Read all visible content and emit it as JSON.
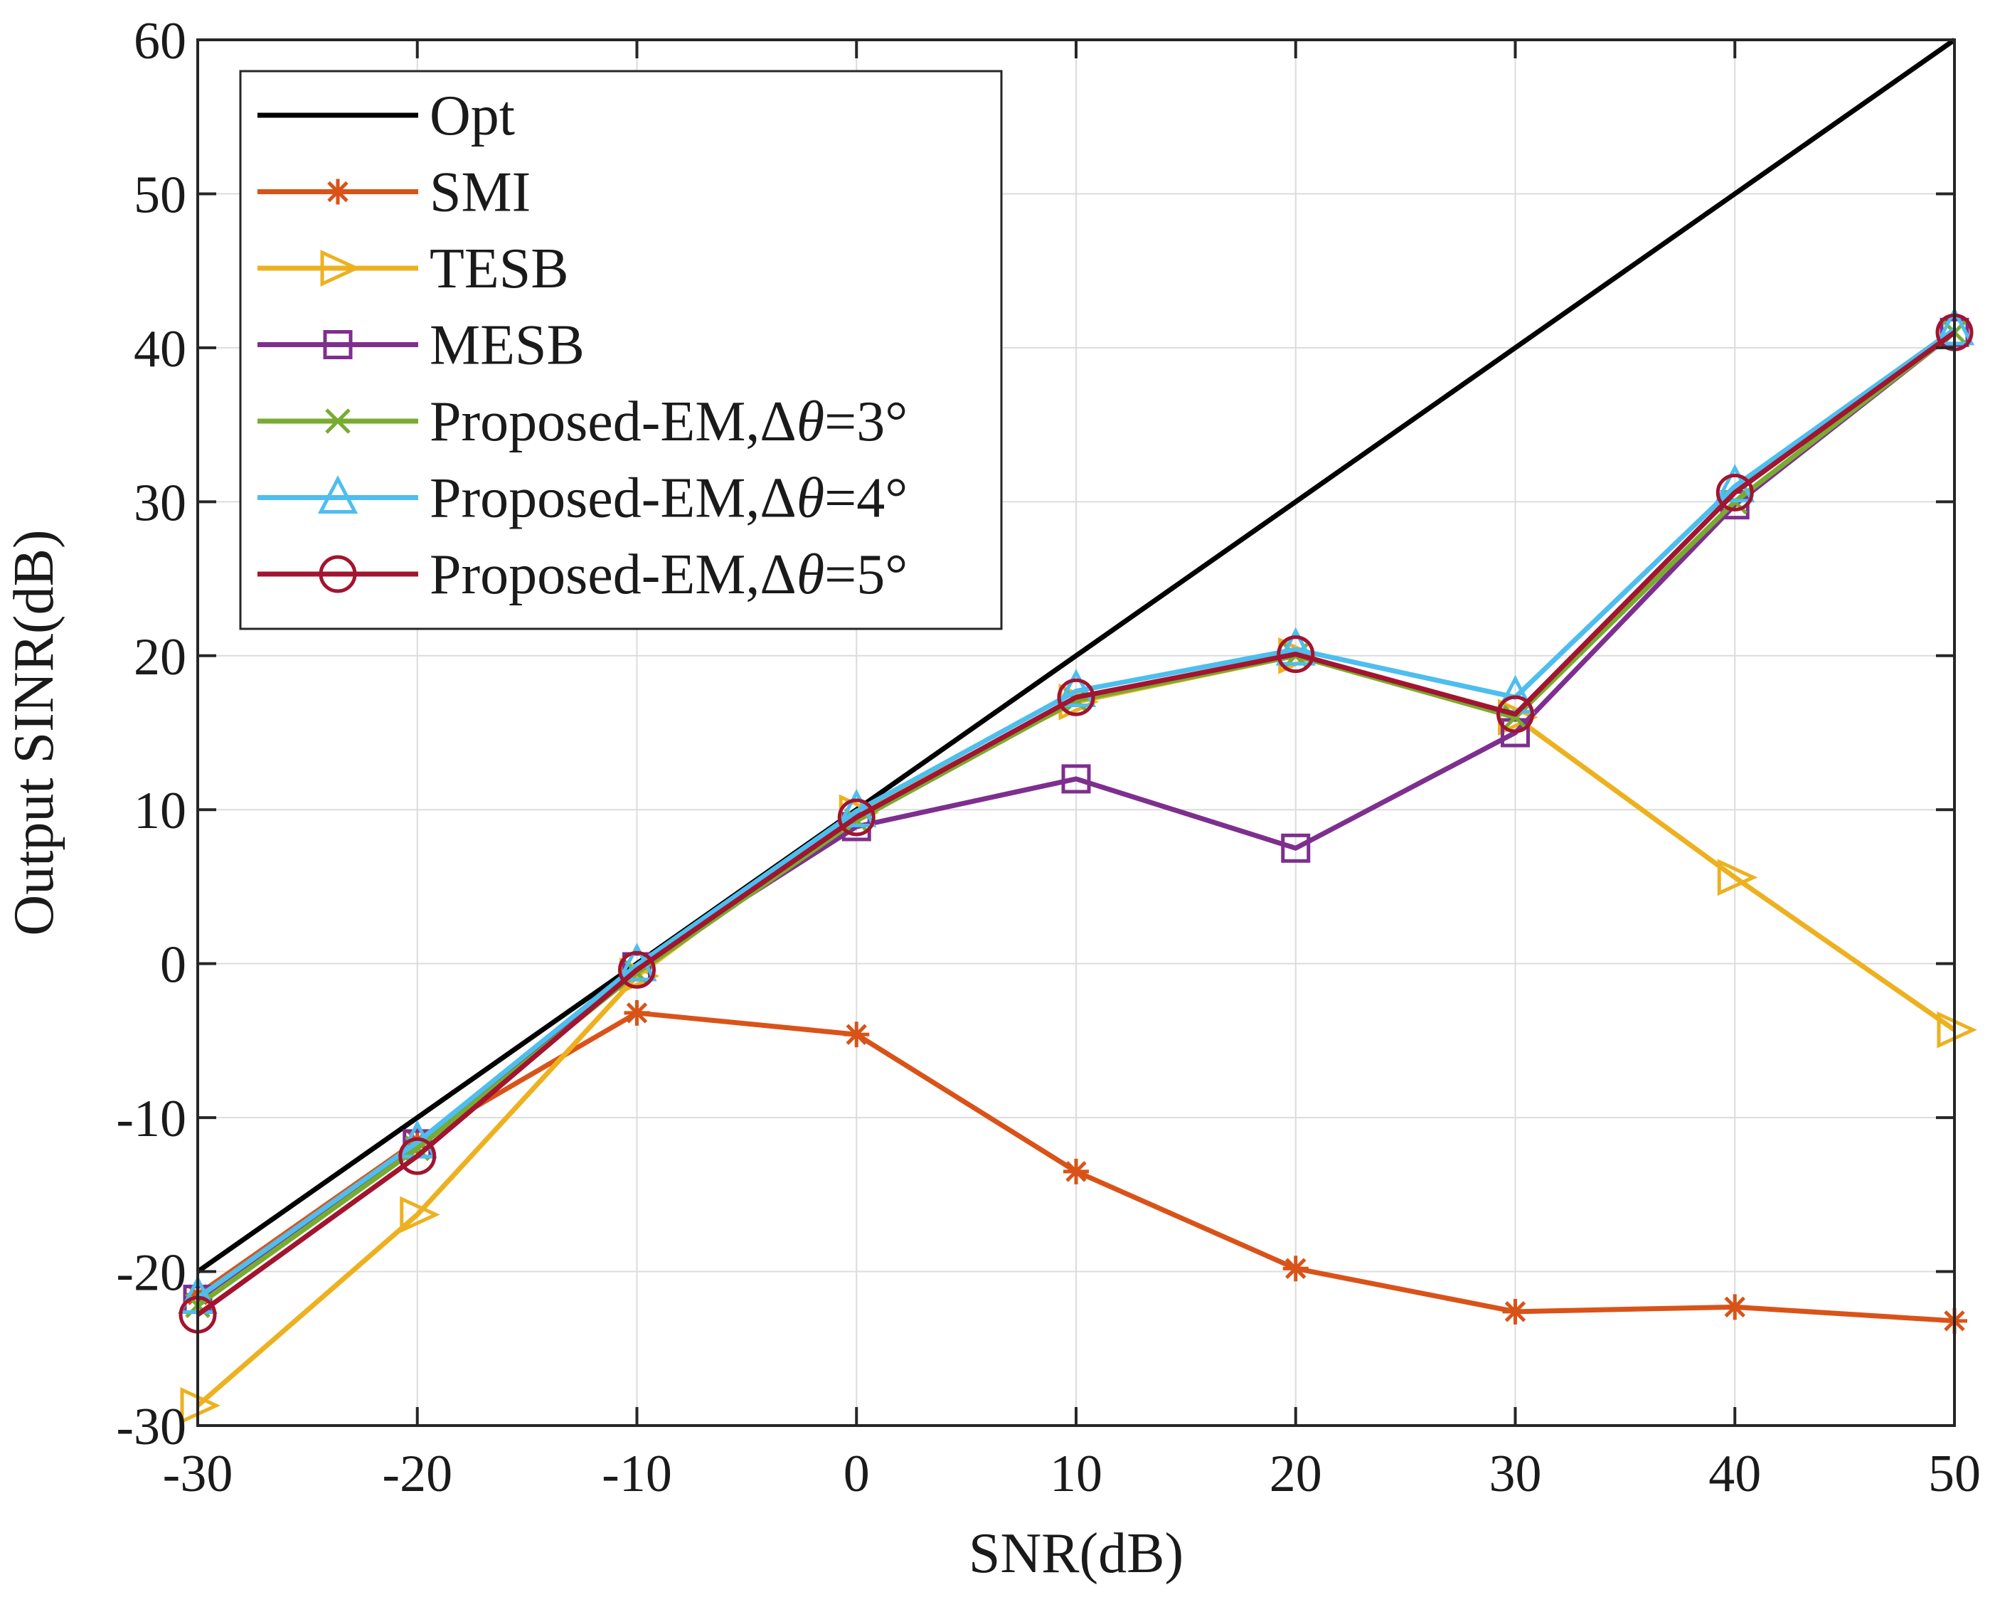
{
  "chart_data": {
    "type": "line",
    "title": "",
    "xlabel": "SNR(dB)",
    "ylabel": "Output SINR(dB)",
    "x": [
      -30,
      -20,
      -10,
      0,
      10,
      20,
      30,
      40,
      50
    ],
    "xlim": [
      -30,
      50
    ],
    "ylim": [
      -30,
      60
    ],
    "xticks": [
      -30,
      -20,
      -10,
      0,
      10,
      20,
      30,
      40,
      50
    ],
    "yticks": [
      -30,
      -20,
      -10,
      0,
      10,
      20,
      30,
      40,
      50,
      60
    ],
    "grid": true,
    "legend_position": "top-left",
    "series": [
      {
        "name": "Opt",
        "legend_prefix": "Opt",
        "legend_symbol": "",
        "legend_suffix": "",
        "color": "#000000",
        "marker": "none",
        "values": [
          -20,
          -10,
          0,
          10,
          20,
          30,
          40,
          50,
          60
        ]
      },
      {
        "name": "SMI",
        "legend_prefix": "SMI",
        "legend_symbol": "",
        "legend_suffix": "",
        "color": "#D95319",
        "marker": "asterisk",
        "values": [
          -21.5,
          -11.5,
          -3.2,
          -4.6,
          -13.5,
          -19.8,
          -22.6,
          -22.3,
          -23.2
        ]
      },
      {
        "name": "TESB",
        "legend_prefix": "TESB",
        "legend_symbol": "",
        "legend_suffix": "",
        "color": "#EDB120",
        "marker": "triangle-right",
        "values": [
          -28.7,
          -16.3,
          -0.8,
          9.8,
          17.0,
          20.0,
          16.0,
          5.6,
          -4.3
        ]
      },
      {
        "name": "MESB",
        "legend_prefix": "MESB",
        "legend_symbol": "",
        "legend_suffix": "",
        "color": "#7E2F8E",
        "marker": "square",
        "values": [
          -21.8,
          -11.7,
          -0.2,
          8.9,
          12.0,
          7.5,
          15.0,
          29.8,
          41.0
        ]
      },
      {
        "name": "Proposed-EM,Δθ=3°",
        "legend_prefix": "Proposed-EM,Δ",
        "legend_symbol": "θ",
        "legend_suffix": "=3°",
        "color": "#77AC30",
        "marker": "x",
        "values": [
          -22.2,
          -12.0,
          -0.6,
          9.3,
          17.1,
          20.0,
          16.0,
          30.0,
          41.0
        ]
      },
      {
        "name": "Proposed-EM,Δθ=4°",
        "legend_prefix": "Proposed-EM,Δ",
        "legend_symbol": "θ",
        "legend_suffix": "=4°",
        "color": "#4DBEEE",
        "marker": "triangle-up",
        "values": [
          -21.7,
          -11.6,
          -0.1,
          9.9,
          17.7,
          20.4,
          17.3,
          31.0,
          41.2
        ]
      },
      {
        "name": "Proposed-EM,Δθ=5°",
        "legend_prefix": "Proposed-EM,Δ",
        "legend_symbol": "θ",
        "legend_suffix": "=5°",
        "color": "#A2142F",
        "marker": "circle",
        "values": [
          -22.8,
          -12.5,
          -0.4,
          9.5,
          17.3,
          20.1,
          16.2,
          30.6,
          41.0
        ]
      }
    ]
  }
}
